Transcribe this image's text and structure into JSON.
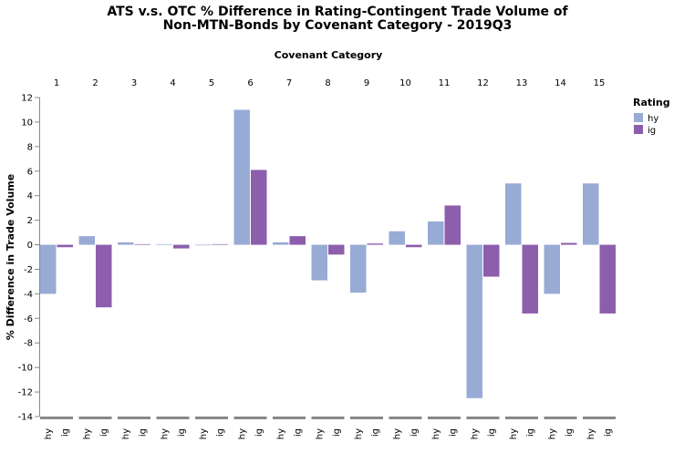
{
  "chart_data": {
    "type": "bar",
    "title_lines": [
      "ATS v.s. OTC % Difference in Rating-Contingent Trade Volume of",
      "Non-MTN-Bonds by Covenant Category - 2019Q3"
    ],
    "column_title": "Covenant Category",
    "ylabel": "% Difference in Trade Volume",
    "ylim": [
      -14,
      12
    ],
    "yticks": [
      12,
      10,
      8,
      6,
      4,
      2,
      0,
      -2,
      -4,
      -6,
      -8,
      -10,
      -12,
      -14
    ],
    "categories": [
      "1",
      "2",
      "3",
      "4",
      "5",
      "6",
      "7",
      "8",
      "9",
      "10",
      "11",
      "12",
      "13",
      "14",
      "15"
    ],
    "sub_categories": [
      "hy",
      "ig"
    ],
    "series": [
      {
        "name": "hy",
        "color": "#98abd5",
        "values": [
          -4.0,
          0.7,
          0.2,
          0.05,
          -0.05,
          11.0,
          0.2,
          -2.9,
          -3.9,
          1.1,
          1.9,
          -12.5,
          5.0,
          -4.0,
          5.0
        ]
      },
      {
        "name": "ig",
        "color": "#8c5eac",
        "values": [
          -0.2,
          -5.1,
          0.05,
          -0.3,
          0.05,
          6.1,
          0.7,
          -0.8,
          0.1,
          -0.2,
          3.2,
          -2.6,
          -5.6,
          0.15,
          -5.6
        ]
      }
    ],
    "legend": {
      "title": "Rating",
      "position": "top-right",
      "items": [
        "hy",
        "ig"
      ]
    },
    "grid": false
  }
}
